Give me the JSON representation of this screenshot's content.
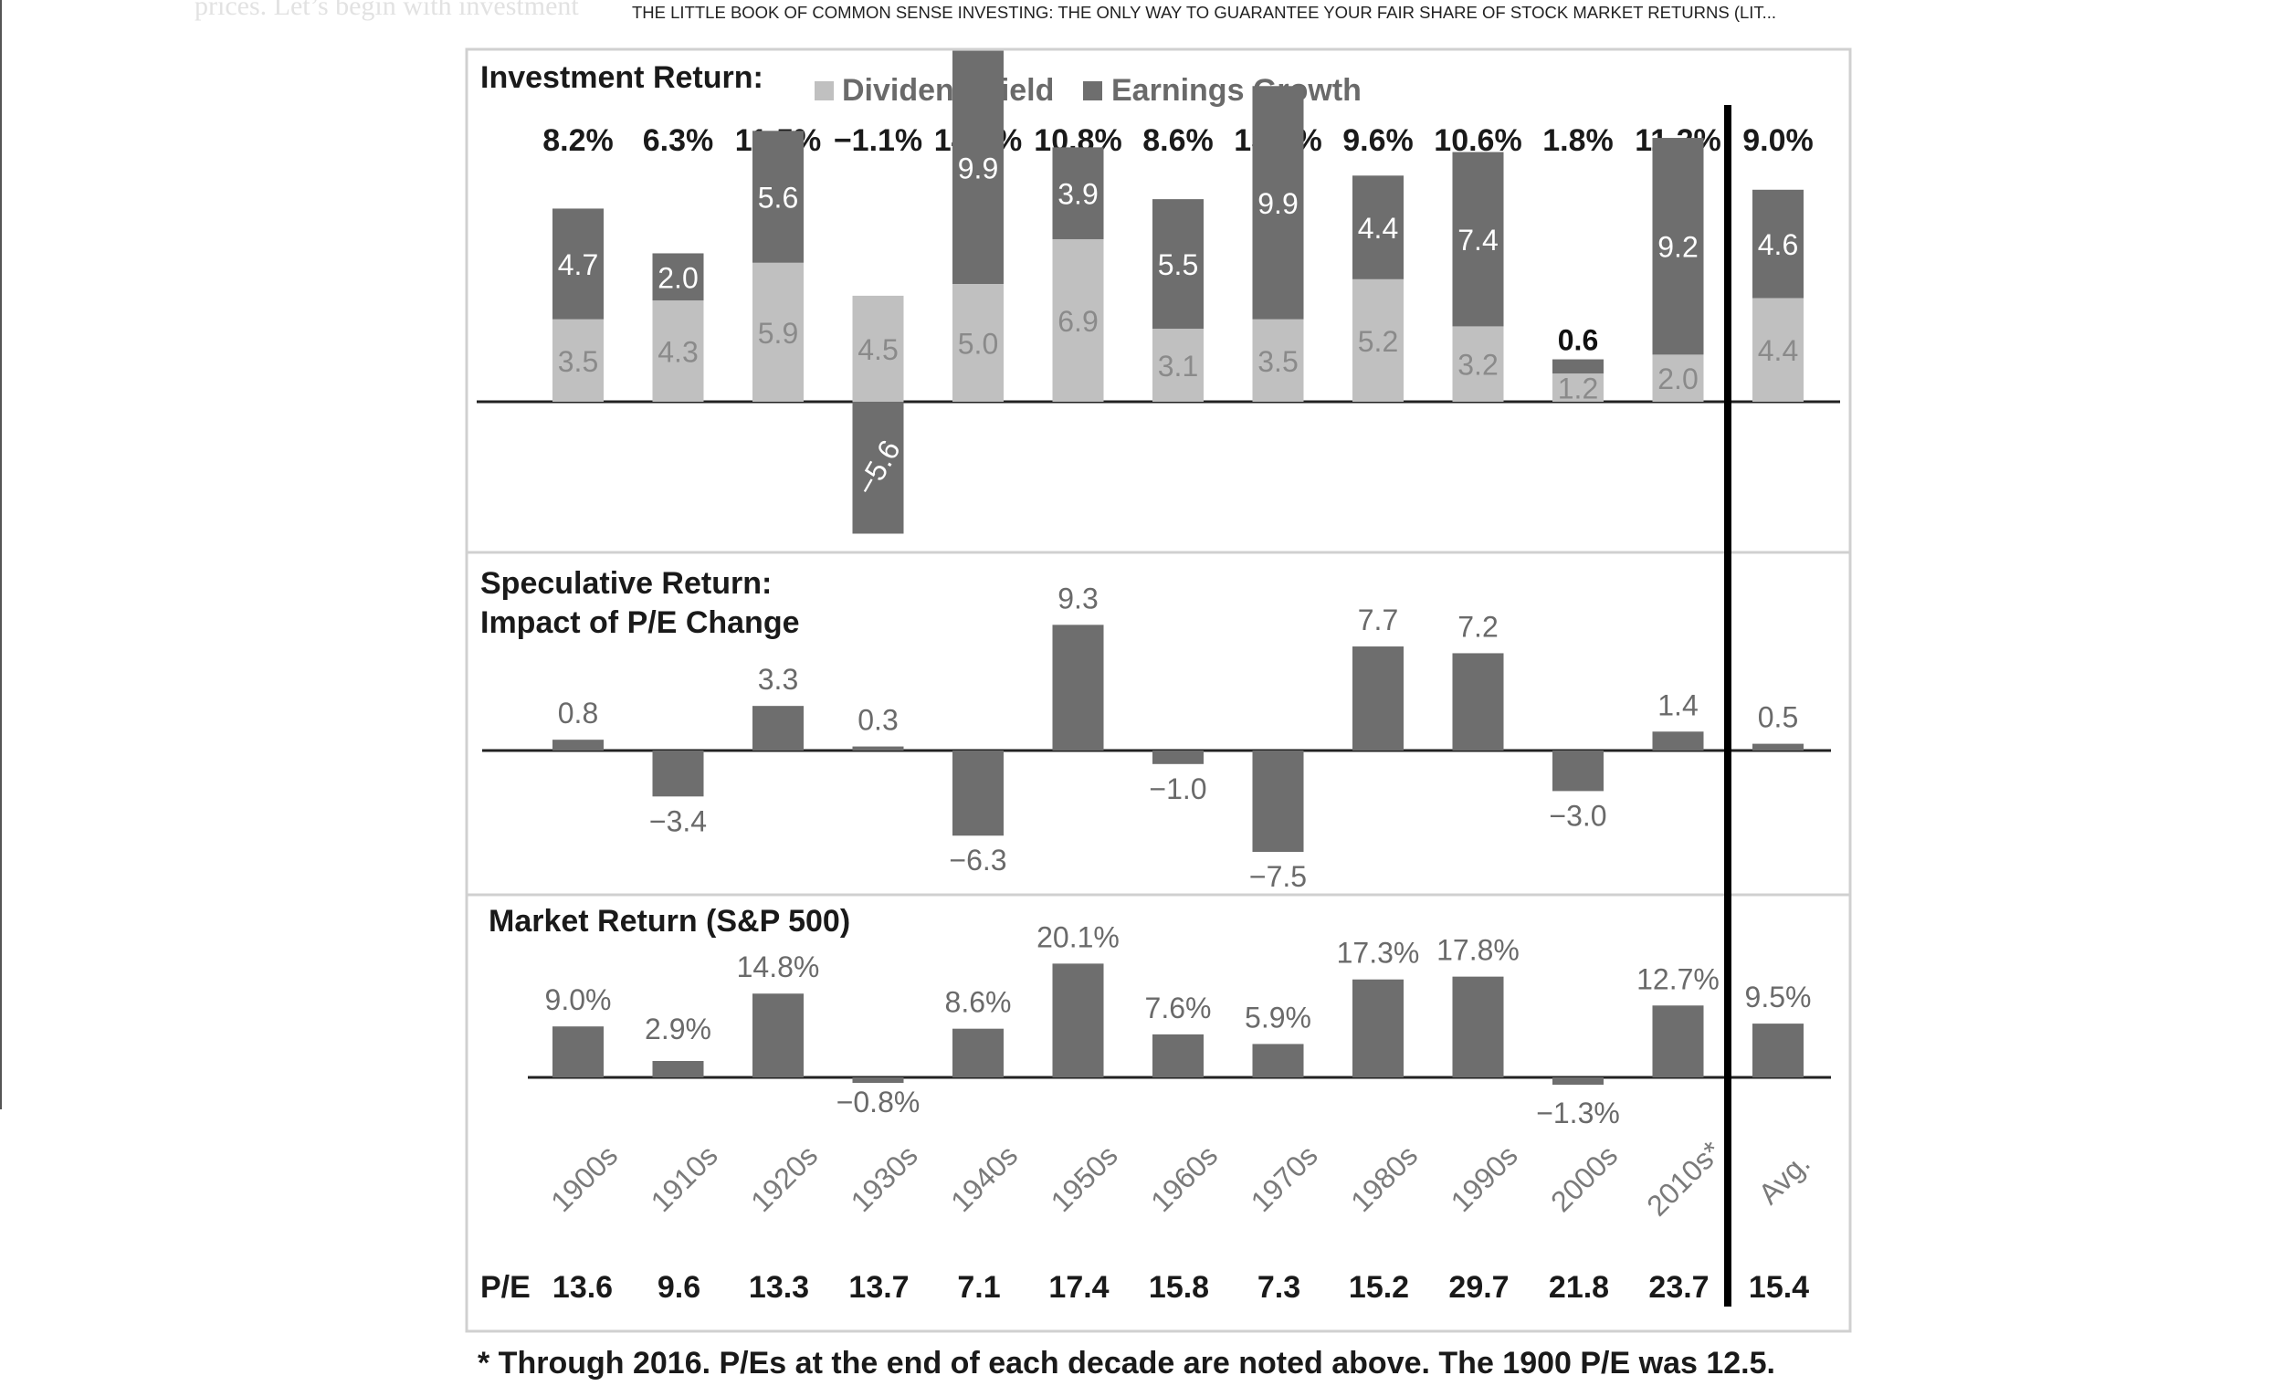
{
  "page": {
    "background_text": "prices. Let’s begin with investment",
    "book_title": "THE LITTLE BOOK OF COMMON SENSE INVESTING: THE ONLY WAY TO GUARANTEE YOUR FAIR SHARE OF STOCK MARKET RETURNS (LIT..."
  },
  "chart_data": {
    "type": "bar",
    "categories": [
      "1900s",
      "1910s",
      "1920s",
      "1930s",
      "1940s",
      "1950s",
      "1960s",
      "1970s",
      "1980s",
      "1990s",
      "2000s",
      "2010s*",
      "Avg."
    ],
    "colors": {
      "dividend_yield": "#c0c0c0",
      "earnings_growth": "#6e6e6e",
      "bar": "#6e6e6e",
      "divider": "#000000",
      "panel_border": "#d0d0d0"
    },
    "investment_return": {
      "title": "Investment Return:",
      "legend": [
        "Dividend Yield",
        "Earnings Growth"
      ],
      "legend_position": "top",
      "totals": [
        "8.2%",
        "6.3%",
        "11.5%",
        "−1.1%",
        "14.9%",
        "10.8%",
        "8.6%",
        "13.4%",
        "9.6%",
        "10.6%",
        "1.8%",
        "11.2%",
        "9.0%"
      ],
      "series": [
        {
          "name": "Dividend Yield",
          "values": [
            3.5,
            4.3,
            5.9,
            4.5,
            5.0,
            6.9,
            3.1,
            3.5,
            5.2,
            3.2,
            1.2,
            2.0,
            4.4
          ],
          "labels": [
            "3.5",
            "4.3",
            "5.9",
            "4.5",
            "5.0",
            "6.9",
            "3.1",
            "3.5",
            "5.2",
            "3.2",
            "1.2",
            "2.0",
            "4.4"
          ]
        },
        {
          "name": "Earnings Growth",
          "values": [
            4.7,
            2.0,
            5.6,
            -5.6,
            9.9,
            3.9,
            5.5,
            9.9,
            4.4,
            7.4,
            0.6,
            9.2,
            4.6
          ],
          "labels": [
            "4.7",
            "2.0",
            "5.6",
            "−5.6",
            "9.9",
            "3.9",
            "5.5",
            "9.9",
            "4.4",
            "7.4",
            "0.6",
            "9.2",
            "4.6"
          ]
        }
      ]
    },
    "speculative_return": {
      "title_lines": [
        "Speculative Return:",
        "Impact of P/E Change"
      ],
      "values": [
        0.8,
        -3.4,
        3.3,
        0.3,
        -6.3,
        9.3,
        -1.0,
        -7.5,
        7.7,
        7.2,
        -3.0,
        1.4,
        0.5
      ],
      "labels": [
        "0.8",
        "−3.4",
        "3.3",
        "0.3",
        "−6.3",
        "9.3",
        "−1.0",
        "−7.5",
        "7.7",
        "7.2",
        "−3.0",
        "1.4",
        "0.5"
      ]
    },
    "market_return": {
      "title": "Market Return (S&P 500)",
      "values": [
        9.0,
        2.9,
        14.8,
        -0.8,
        8.6,
        20.1,
        7.6,
        5.9,
        17.3,
        17.8,
        -1.3,
        12.7,
        9.5
      ],
      "labels": [
        "9.0%",
        "2.9%",
        "14.8%",
        "−0.8%",
        "8.6%",
        "20.1%",
        "7.6%",
        "5.9%",
        "17.3%",
        "17.8%",
        "−1.3%",
        "12.7%",
        "9.5%"
      ]
    },
    "pe": {
      "label": "P/E",
      "values": [
        "13.6",
        "9.6",
        "13.3",
        "13.7",
        "7.1",
        "17.4",
        "15.8",
        "7.3",
        "15.2",
        "29.7",
        "21.8",
        "23.7",
        "15.4"
      ]
    },
    "footnote": "* Through 2016. P/Es at the end of each decade are noted above. The 1900 P/E was 12.5."
  }
}
